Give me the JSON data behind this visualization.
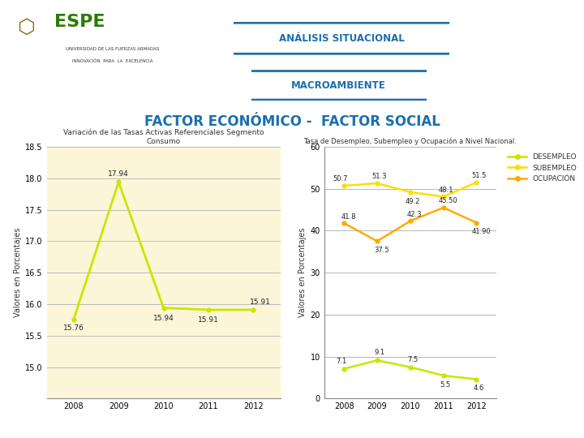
{
  "title_main": "FACTOR ECONÓMICO -  FACTOR SOCIAL",
  "header_line1": "ANÁLISIS SITUACIONAL",
  "header_line2": "MACROAMBIENTE",
  "left_chart": {
    "title": "Variación de las Tasas Activas Referenciales Segmento\nConsumo",
    "years": [
      2008,
      2009,
      2010,
      2011,
      2012
    ],
    "values": [
      15.76,
      17.94,
      15.94,
      15.91,
      15.91
    ],
    "labels": [
      "15.76",
      "17.94",
      "15.94",
      "15.91",
      "15.91"
    ],
    "ylabel": "Valores en Porcentajes",
    "ylim": [
      14.5,
      18.5
    ],
    "yticks": [
      15.0,
      15.5,
      16.0,
      16.5,
      17.0,
      17.5,
      18.0,
      18.5
    ],
    "line_color": "#c8e600",
    "bg_color": "#fdf5d8",
    "grid_color": "#bbbbbb"
  },
  "right_chart": {
    "title": "Tasa de Desempleo, Subempleo y Ocupación a Nivel Nacional.",
    "years": [
      2008,
      2009,
      2010,
      2011,
      2012
    ],
    "desempleo": [
      7.1,
      9.1,
      7.5,
      5.5,
      4.6
    ],
    "subempleo": [
      50.7,
      51.3,
      49.2,
      48.1,
      51.5
    ],
    "ocupacion": [
      41.8,
      37.5,
      42.3,
      45.5,
      41.9
    ],
    "desempleo_labels": [
      "7.1",
      "9.1",
      "7.5",
      "5.5",
      "4.6"
    ],
    "subempleo_labels": [
      "50.7",
      "51.3",
      "49.2",
      "48.1",
      "51.5"
    ],
    "ocupacion_labels": [
      "41.8",
      "37.5",
      "42.3",
      "45.50",
      "41.90"
    ],
    "ylabel": "Valores en Porcentajes",
    "ylim": [
      0,
      60
    ],
    "yticks": [
      0,
      10,
      20,
      30,
      40,
      50,
      60
    ],
    "desempleo_color": "#c8e600",
    "subempleo_color": "#ffdd00",
    "ocupacion_color": "#ffaa00",
    "grid_color": "#aaaaaa",
    "legend_labels": [
      "DESEMPLEO",
      "SUBEMPLEO",
      "OCUPACIÓN"
    ]
  },
  "bg_color": "#ffffff",
  "title_color": "#1a6fae",
  "header_text_color": "#1a6fae",
  "header_green": "#7dc21e",
  "header_yellow": "#e8e000",
  "box_border_color": "#1a6fae"
}
